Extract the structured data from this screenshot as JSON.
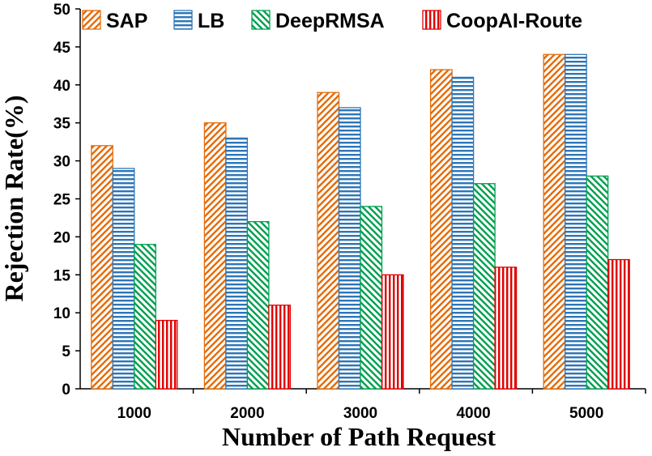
{
  "chart_data": {
    "type": "bar",
    "title": "",
    "xlabel": "Number of Path Request",
    "ylabel": "Rejection Rate(%)",
    "ylim": [
      0,
      50
    ],
    "yticks": [
      0,
      5,
      10,
      15,
      20,
      25,
      30,
      35,
      40,
      45,
      50
    ],
    "grid": false,
    "legend_position": "top",
    "categories": [
      "1000",
      "2000",
      "3000",
      "4000",
      "5000"
    ],
    "series": [
      {
        "name": "SAP",
        "values": [
          32,
          35,
          39,
          42,
          44
        ],
        "color": "#e46c0a",
        "pattern": "diagonal-forward"
      },
      {
        "name": "LB",
        "values": [
          29,
          33,
          37,
          41,
          44
        ],
        "color": "#2e75b6",
        "pattern": "horizontal"
      },
      {
        "name": "DeepRMSA",
        "values": [
          19,
          22,
          24,
          27,
          28
        ],
        "color": "#00a050",
        "pattern": "diagonal-backward"
      },
      {
        "name": "CoopAI-Route",
        "values": [
          9,
          11,
          15,
          16,
          17
        ],
        "color": "#e00000",
        "pattern": "vertical"
      }
    ]
  }
}
